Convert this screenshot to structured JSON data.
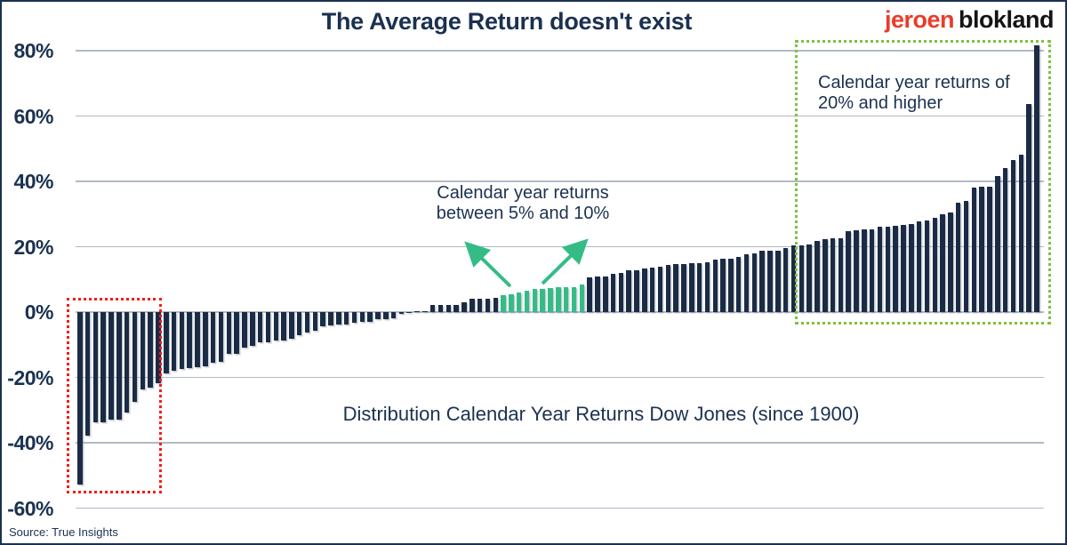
{
  "logo": {
    "first": "jeroen",
    "last": "blokland"
  },
  "source": "Source: True Insights",
  "colors": {
    "navy": "#1b3150",
    "bar": "#1b2b45",
    "green": "#35bc86",
    "green_box": "#7cc242",
    "red_box": "#f51d17",
    "gridline": "#b0bac5",
    "logo_red": "#e93c2b",
    "logo_black": "#141414",
    "background": "#ffffff"
  },
  "chart_data": {
    "type": "bar",
    "title": "The Average Return doesn't exist",
    "center_label": "Distribution Calendar Year Returns Dow Jones (since 1900)",
    "xlabel": "",
    "ylabel": "",
    "ylim": [
      -60,
      85
    ],
    "grid": true,
    "legend": "none",
    "tick_values": [
      80,
      60,
      40,
      20,
      0,
      -20,
      -40,
      -60
    ],
    "tick_labels": [
      "80%",
      "60%",
      "40%",
      "20%",
      "0%",
      "-20%",
      "-40%",
      "-60%"
    ],
    "values": [
      -52.7,
      -37.7,
      -33.8,
      -33.8,
      -32.9,
      -32.8,
      -30.7,
      -27.6,
      -23.6,
      -23.1,
      -21.7,
      -18.9,
      -17.9,
      -17.3,
      -17.2,
      -16.8,
      -16.6,
      -15.4,
      -15.2,
      -12.8,
      -12.7,
      -10.8,
      -10.3,
      -9.3,
      -9.2,
      -8.8,
      -8.7,
      -8.1,
      -7.1,
      -6.2,
      -5.6,
      -4.3,
      -4.2,
      -3.8,
      -3.7,
      -3.3,
      -3.1,
      -2.9,
      -2.2,
      -2.1,
      -1.9,
      -0.6,
      -0.4,
      0.3,
      0.4,
      2.1,
      2.2,
      2.3,
      2.3,
      3.1,
      4.1,
      4.2,
      4.2,
      4.3,
      5.1,
      5.5,
      6.1,
      6.4,
      7.0,
      7.2,
      7.3,
      7.5,
      7.6,
      7.6,
      8.4,
      10.5,
      10.9,
      11.0,
      11.8,
      12.1,
      12.7,
      12.9,
      13.4,
      13.7,
      13.8,
      14.4,
      14.6,
      14.6,
      14.9,
      15.0,
      15.2,
      16.1,
      16.3,
      16.4,
      17.0,
      17.6,
      17.9,
      18.7,
      18.7,
      18.8,
      19.6,
      20.3,
      20.3,
      20.8,
      21.7,
      22.3,
      22.6,
      22.6,
      24.8,
      25.1,
      25.2,
      25.3,
      26.0,
      26.2,
      26.5,
      26.6,
      27.0,
      27.7,
      28.1,
      28.8,
      30.0,
      30.5,
      33.5,
      34.0,
      38.2,
      38.3,
      38.5,
      41.7,
      44.0,
      46.6,
      48.2,
      63.7,
      81.7
    ],
    "highlight_range": [
      5,
      10
    ],
    "annotations": [
      {
        "id": "mid",
        "lines": [
          "Calendar year returns",
          "between 5% and 10%"
        ]
      },
      {
        "id": "right",
        "lines": [
          "Calendar year returns of",
          "20% and higher"
        ]
      }
    ]
  }
}
